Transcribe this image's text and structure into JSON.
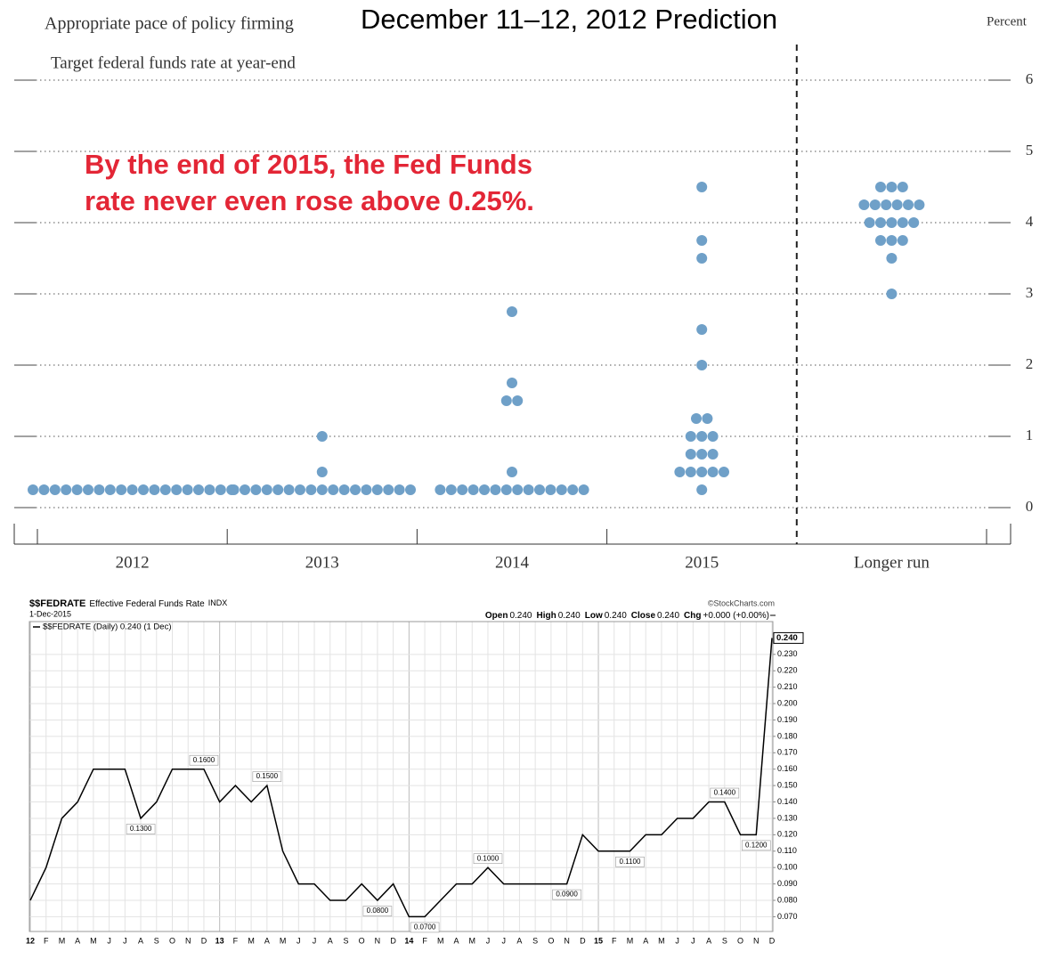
{
  "chart_data": [
    {
      "type": "dot",
      "title": "December 11–12, 2012 Prediction",
      "subtitle": "Appropriate pace of policy firming",
      "ylabel": "Percent",
      "panel_label": "Target federal funds rate at year-end",
      "annotation": [
        "By the end of 2015, the Fed Funds",
        "rate never even rose above 0.25%."
      ],
      "categories": [
        "2012",
        "2013",
        "2014",
        "2015",
        "Longer run"
      ],
      "values": [
        [
          0.25,
          0.25,
          0.25,
          0.25,
          0.25,
          0.25,
          0.25,
          0.25,
          0.25,
          0.25,
          0.25,
          0.25,
          0.25,
          0.25,
          0.25,
          0.25,
          0.25,
          0.25,
          0.25
        ],
        [
          1.0,
          0.5,
          0.25,
          0.25,
          0.25,
          0.25,
          0.25,
          0.25,
          0.25,
          0.25,
          0.25,
          0.25,
          0.25,
          0.25,
          0.25,
          0.25,
          0.25,
          0.25,
          0.25
        ],
        [
          2.75,
          1.75,
          1.5,
          1.5,
          0.5,
          0.25,
          0.25,
          0.25,
          0.25,
          0.25,
          0.25,
          0.25,
          0.25,
          0.25,
          0.25,
          0.25,
          0.25,
          0.25,
          0.25
        ],
        [
          4.5,
          3.75,
          3.5,
          2.5,
          2.0,
          1.25,
          1.25,
          1.0,
          1.0,
          1.0,
          0.75,
          0.75,
          0.75,
          0.5,
          0.5,
          0.5,
          0.5,
          0.5,
          0.25
        ],
        [
          4.5,
          4.5,
          4.5,
          4.25,
          4.25,
          4.25,
          4.25,
          4.25,
          4.25,
          4.0,
          4.0,
          4.0,
          4.0,
          4.0,
          3.75,
          3.75,
          3.75,
          3.5,
          3.0
        ]
      ],
      "color": "#6fa0c8",
      "ylim": [
        -0.25,
        6.5
      ],
      "yticks": [
        0,
        1,
        2,
        3,
        4,
        5,
        6
      ],
      "grid": true
    },
    {
      "type": "line",
      "symbol": "$$FEDRATE",
      "title": "Effective Federal Funds Rate",
      "exchange": "INDX",
      "date": "1-Dec-2015",
      "source": "©StockCharts.com",
      "ohlc": [
        [
          "Open",
          "0.240"
        ],
        [
          "High",
          "0.240"
        ],
        [
          "Low",
          "0.240"
        ],
        [
          "Close",
          "0.240"
        ],
        [
          "Chg",
          "+0.000 (+0.00%)"
        ]
      ],
      "categories": [
        "12",
        "F",
        "M",
        "A",
        "M",
        "J",
        "J",
        "A",
        "S",
        "O",
        "N",
        "D",
        "13",
        "F",
        "M",
        "A",
        "M",
        "J",
        "J",
        "A",
        "S",
        "O",
        "N",
        "D",
        "14",
        "F",
        "M",
        "A",
        "M",
        "J",
        "J",
        "A",
        "S",
        "O",
        "N",
        "D",
        "15",
        "F",
        "M",
        "A",
        "M",
        "J",
        "J",
        "A",
        "S",
        "O",
        "N",
        "D"
      ],
      "series": [
        {
          "name": "$$FEDRATE (Daily) 0.240 (1 Dec)",
          "color": "#000000",
          "values": [
            0.08,
            0.1,
            0.13,
            0.14,
            0.16,
            0.16,
            0.16,
            0.13,
            0.14,
            0.16,
            0.16,
            0.16,
            0.14,
            0.15,
            0.14,
            0.15,
            0.11,
            0.09,
            0.09,
            0.08,
            0.08,
            0.09,
            0.08,
            0.09,
            0.07,
            0.07,
            0.08,
            0.09,
            0.09,
            0.1,
            0.09,
            0.09,
            0.09,
            0.09,
            0.09,
            0.12,
            0.11,
            0.11,
            0.11,
            0.12,
            0.12,
            0.13,
            0.13,
            0.14,
            0.14,
            0.12,
            0.12,
            0.24
          ],
          "value_labels": [
            null,
            null,
            null,
            null,
            null,
            null,
            null,
            "0.1300",
            null,
            null,
            null,
            "0.1600",
            null,
            null,
            null,
            "0.1500",
            null,
            null,
            null,
            null,
            null,
            null,
            "0.0800",
            null,
            null,
            "0.0700",
            null,
            null,
            null,
            "0.1000",
            null,
            null,
            null,
            null,
            "0.0900",
            null,
            null,
            null,
            "0.1100",
            null,
            null,
            null,
            null,
            null,
            "0.1400",
            null,
            "0.1200",
            "0.240"
          ]
        }
      ],
      "ylim": [
        0.061,
        0.25
      ],
      "yticks": [
        {
          "value": 0.07,
          "label": "0.070"
        },
        {
          "value": 0.08,
          "label": "0.080"
        },
        {
          "value": 0.09,
          "label": "0.090"
        },
        {
          "value": 0.1,
          "label": "0.100"
        },
        {
          "value": 0.11,
          "label": "0.110"
        },
        {
          "value": 0.12,
          "label": "0.120"
        },
        {
          "value": 0.13,
          "label": "0.130"
        },
        {
          "value": 0.14,
          "label": "0.140"
        },
        {
          "value": 0.15,
          "label": "0.150"
        },
        {
          "value": 0.16,
          "label": "0.160"
        },
        {
          "value": 0.17,
          "label": "0.170"
        },
        {
          "value": 0.18,
          "label": "0.180"
        },
        {
          "value": 0.19,
          "label": "0.190"
        },
        {
          "value": 0.2,
          "label": "0.200"
        },
        {
          "value": 0.21,
          "label": "0.210"
        },
        {
          "value": 0.22,
          "label": "0.220"
        },
        {
          "value": 0.23,
          "label": "0.230"
        }
      ],
      "grid": true
    }
  ]
}
